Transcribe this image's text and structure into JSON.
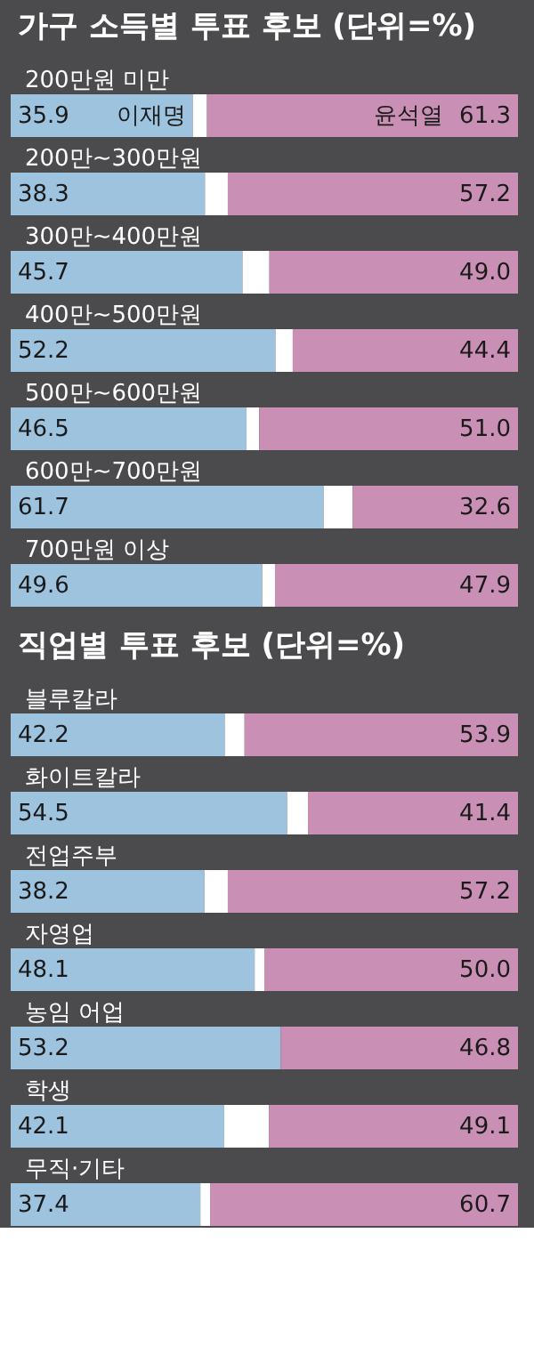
{
  "chart_data": [
    {
      "type": "bar",
      "orientation": "horizontal",
      "stacked": true,
      "title": "가구 소득별 투표 후보 (단위=%)",
      "categories": [
        "200만원 미만",
        "200만~300만원",
        "300만~400만원",
        "400만~500만원",
        "500만~600만원",
        "600만~700만원",
        "700만원 이상"
      ],
      "xlim": [
        0,
        100
      ],
      "tick_labels": "y",
      "series": [
        {
          "name": "이재명",
          "color": "#9dc3de",
          "values": [
            35.9,
            38.3,
            45.7,
            52.2,
            46.5,
            61.7,
            49.6
          ],
          "value_labels": [
            "35.9",
            "38.3",
            "45.7",
            "52.2",
            "46.5",
            "61.7",
            "49.6"
          ]
        },
        {
          "color": "#ffffff",
          "values": [
            2.8,
            4.5,
            5.3,
            3.4,
            2.5,
            5.7,
            2.5
          ]
        },
        {
          "name": "윤석열",
          "color": "#c98fb5",
          "values": [
            61.3,
            57.2,
            49.0,
            44.4,
            51.0,
            32.6,
            47.9
          ],
          "value_labels": [
            "61.3",
            "57.2",
            "49.0",
            "44.4",
            "51.0",
            "32.6",
            "47.9"
          ]
        }
      ]
    },
    {
      "type": "bar",
      "orientation": "horizontal",
      "stacked": true,
      "title": "직업별 투표 후보 (단위=%)",
      "categories": [
        "블루칼라",
        "화이트칼라",
        "전업주부",
        "자영업",
        "농임 어업",
        "학생",
        "무직·기타"
      ],
      "xlim": [
        0,
        100
      ],
      "tick_labels": "y",
      "series": [
        {
          "color": "#9dc3de",
          "values": [
            42.2,
            54.5,
            38.2,
            48.1,
            53.2,
            42.1,
            37.4
          ],
          "value_labels": [
            "42.2",
            "54.5",
            "38.2",
            "48.1",
            "53.2",
            "42.1",
            "37.4"
          ]
        },
        {
          "color": "#ffffff",
          "values": [
            3.9,
            4.1,
            4.6,
            1.9,
            0.0,
            8.8,
            1.9
          ]
        },
        {
          "color": "#c98fb5",
          "values": [
            53.9,
            41.4,
            57.2,
            50.0,
            46.8,
            49.1,
            60.7
          ],
          "value_labels": [
            "53.9",
            "41.4",
            "57.2",
            "50.0",
            "46.8",
            "49.1",
            "60.7"
          ]
        }
      ]
    }
  ]
}
